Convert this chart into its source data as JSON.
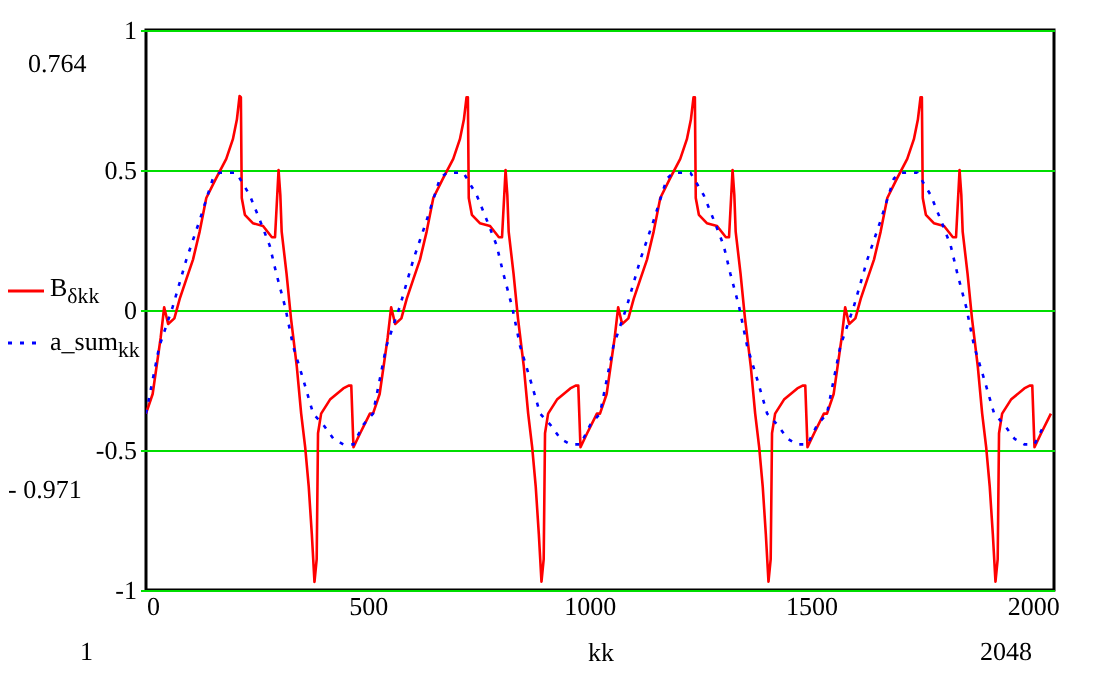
{
  "chart_data": {
    "type": "line",
    "xlabel": "kk",
    "xlim": [
      0,
      2048
    ],
    "xticks": [
      0,
      500,
      1000,
      1500,
      2000
    ],
    "ylim": [
      -1,
      1
    ],
    "yticks": [
      -1,
      -0.5,
      0,
      0.5,
      1
    ],
    "grid": "y",
    "legend": "left",
    "marker": "none",
    "annotations": [
      "0.764",
      "- 0.971",
      "1",
      "2048"
    ],
    "series": [
      {
        "name": "B$_{δkk}$",
        "color": "#ff0000",
        "line_style": "solid",
        "x": [
          0,
          15,
          33,
          41,
          50,
          64,
          76,
          91,
          106,
          121,
          136,
          158,
          181,
          196,
          205,
          211,
          214,
          216,
          223,
          241,
          264,
          284,
          291,
          299,
          303,
          306,
          317,
          327,
          340,
          350,
          359,
          367,
          374,
          380,
          385,
          388,
          395,
          415,
          445,
          457,
          463,
          468,
          483,
          505,
          512,
          527,
          545,
          553,
          562,
          576,
          588,
          603,
          618,
          633,
          648,
          670,
          693,
          708,
          717,
          723,
          726,
          728,
          735,
          753,
          776,
          796,
          803,
          811,
          815,
          818,
          829,
          839,
          852,
          862,
          871,
          879,
          886,
          892,
          897,
          900,
          907,
          927,
          957,
          969,
          975,
          980,
          995,
          1017,
          1024,
          1039,
          1057,
          1065,
          1074,
          1088,
          1100,
          1115,
          1130,
          1145,
          1160,
          1182,
          1205,
          1220,
          1229,
          1235,
          1238,
          1240,
          1247,
          1265,
          1288,
          1308,
          1315,
          1323,
          1327,
          1330,
          1341,
          1351,
          1364,
          1374,
          1383,
          1391,
          1398,
          1404,
          1409,
          1412,
          1419,
          1439,
          1469,
          1481,
          1487,
          1492,
          1507,
          1529,
          1536,
          1551,
          1569,
          1577,
          1586,
          1600,
          1612,
          1627,
          1642,
          1657,
          1672,
          1694,
          1717,
          1732,
          1741,
          1747,
          1750,
          1752,
          1759,
          1777,
          1800,
          1820,
          1827,
          1835,
          1839,
          1842,
          1853,
          1863,
          1876,
          1886,
          1895,
          1903,
          1910,
          1916,
          1921,
          1924,
          1931,
          1951,
          1981,
          1993,
          1999,
          2004,
          2019,
          2041
        ],
        "values": [
          -0.37,
          -0.3,
          -0.1,
          0.01,
          -0.05,
          -0.03,
          0.04,
          0.11,
          0.18,
          0.28,
          0.4,
          0.47,
          0.54,
          0.61,
          0.68,
          0.764,
          0.76,
          0.4,
          0.34,
          0.31,
          0.3,
          0.26,
          0.26,
          0.5,
          0.41,
          0.28,
          0.13,
          -0.03,
          -0.2,
          -0.37,
          -0.49,
          -0.63,
          -0.8,
          -0.971,
          -0.89,
          -0.44,
          -0.37,
          -0.32,
          -0.28,
          -0.27,
          -0.27,
          -0.49,
          -0.44,
          -0.37,
          -0.37,
          -0.3,
          -0.1,
          0.01,
          -0.05,
          -0.03,
          0.04,
          0.11,
          0.18,
          0.28,
          0.4,
          0.47,
          0.54,
          0.61,
          0.68,
          0.76,
          0.76,
          0.4,
          0.34,
          0.31,
          0.3,
          0.26,
          0.26,
          0.5,
          0.41,
          0.28,
          0.13,
          -0.03,
          -0.2,
          -0.37,
          -0.49,
          -0.63,
          -0.8,
          -0.97,
          -0.89,
          -0.44,
          -0.37,
          -0.32,
          -0.28,
          -0.27,
          -0.27,
          -0.49,
          -0.44,
          -0.37,
          -0.37,
          -0.3,
          -0.1,
          0.01,
          -0.05,
          -0.03,
          0.04,
          0.11,
          0.18,
          0.28,
          0.4,
          0.47,
          0.54,
          0.61,
          0.68,
          0.76,
          0.76,
          0.4,
          0.34,
          0.31,
          0.3,
          0.26,
          0.26,
          0.5,
          0.41,
          0.28,
          0.13,
          -0.03,
          -0.2,
          -0.37,
          -0.49,
          -0.63,
          -0.8,
          -0.97,
          -0.89,
          -0.44,
          -0.37,
          -0.32,
          -0.28,
          -0.27,
          -0.27,
          -0.49,
          -0.44,
          -0.37,
          -0.37,
          -0.3,
          -0.1,
          0.01,
          -0.05,
          -0.03,
          0.04,
          0.11,
          0.18,
          0.28,
          0.4,
          0.47,
          0.54,
          0.61,
          0.68,
          0.76,
          0.76,
          0.4,
          0.34,
          0.31,
          0.3,
          0.26,
          0.26,
          0.5,
          0.41,
          0.28,
          0.13,
          -0.03,
          -0.2,
          -0.37,
          -0.49,
          -0.63,
          -0.8,
          -0.97,
          -0.89,
          -0.44,
          -0.37,
          -0.32,
          -0.28,
          -0.27,
          -0.27,
          -0.49,
          -0.44,
          -0.37
        ]
      },
      {
        "name": "a_sum$_{kk}$",
        "color": "#0000ff",
        "line_style": "dotted",
        "x": [
          0,
          30,
          60,
          91,
          121,
          151,
          166,
          204,
          234,
          257,
          279,
          294,
          314,
          332,
          355,
          377,
          400,
          423,
          445,
          468,
          490,
          512,
          542,
          572,
          603,
          633,
          663,
          678,
          716,
          746,
          769,
          791,
          806,
          826,
          844,
          867,
          889,
          912,
          935,
          957,
          980,
          1002,
          1024,
          1054,
          1084,
          1115,
          1145,
          1175,
          1190,
          1228,
          1258,
          1281,
          1303,
          1318,
          1338,
          1356,
          1379,
          1401,
          1424,
          1447,
          1469,
          1492,
          1514,
          1536,
          1566,
          1596,
          1627,
          1657,
          1687,
          1702,
          1740,
          1770,
          1793,
          1815,
          1830,
          1850,
          1868,
          1891,
          1913,
          1936,
          1959,
          1981,
          2004,
          2026
        ],
        "values": [
          -0.37,
          -0.13,
          0.01,
          0.18,
          0.32,
          0.47,
          0.49,
          0.49,
          0.41,
          0.32,
          0.23,
          0.13,
          0.01,
          -0.13,
          -0.25,
          -0.37,
          -0.41,
          -0.46,
          -0.48,
          -0.48,
          -0.41,
          -0.37,
          -0.13,
          0.01,
          0.18,
          0.32,
          0.47,
          0.49,
          0.49,
          0.41,
          0.32,
          0.23,
          0.13,
          0.01,
          -0.13,
          -0.25,
          -0.37,
          -0.41,
          -0.46,
          -0.48,
          -0.48,
          -0.41,
          -0.37,
          -0.13,
          0.01,
          0.18,
          0.32,
          0.47,
          0.49,
          0.49,
          0.41,
          0.32,
          0.23,
          0.13,
          0.01,
          -0.13,
          -0.25,
          -0.37,
          -0.41,
          -0.46,
          -0.48,
          -0.48,
          -0.41,
          -0.37,
          -0.13,
          0.01,
          0.18,
          0.32,
          0.47,
          0.49,
          0.49,
          0.41,
          0.32,
          0.23,
          0.13,
          0.01,
          -0.13,
          -0.25,
          -0.37,
          -0.41,
          -0.46,
          -0.48,
          -0.48,
          -0.41
        ]
      }
    ]
  }
}
